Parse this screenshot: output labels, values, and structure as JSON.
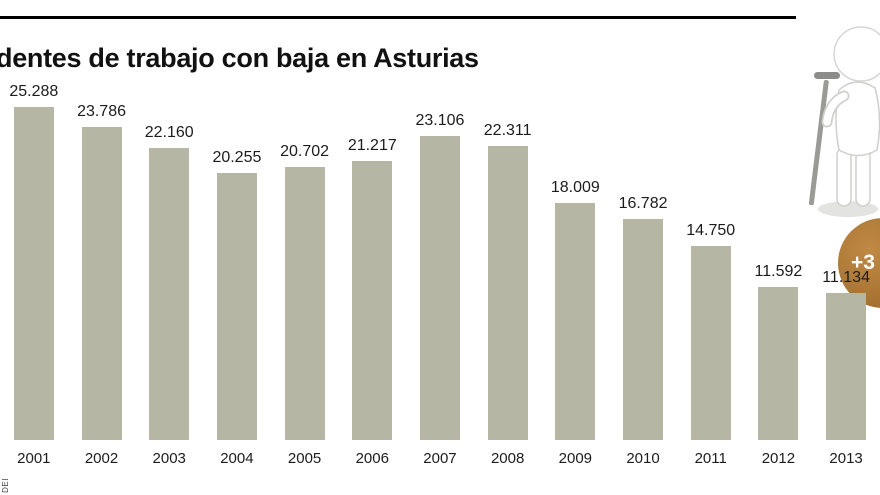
{
  "header": {
    "title": "dentes de trabajo con baja en Asturias"
  },
  "chart_data": {
    "type": "bar",
    "title": "dentes de trabajo con baja en Asturias",
    "categories": [
      "2001",
      "2002",
      "2003",
      "2004",
      "2005",
      "2006",
      "2007",
      "2008",
      "2009",
      "2010",
      "2011",
      "2012",
      "2013"
    ],
    "values": [
      25288,
      23786,
      22160,
      20255,
      20702,
      21217,
      23106,
      22311,
      18009,
      16782,
      14750,
      11592,
      11134
    ],
    "value_labels": [
      "25.288",
      "23.786",
      "22.160",
      "20.255",
      "20.702",
      "21.217",
      "23.106",
      "22.311",
      "18.009",
      "16.782",
      "14.750",
      "11.592",
      "11.134"
    ],
    "xlabel": "",
    "ylabel": "",
    "ylim": [
      0,
      25288
    ],
    "grid": false,
    "legend": "none",
    "bar_color": "#b5b7a4"
  },
  "badge": {
    "label": "+3",
    "color": "#aa7132"
  },
  "decorations": {
    "figure_icon": "injured-figure-with-crutch-icon"
  },
  "footer": {
    "credit": "DEI"
  }
}
